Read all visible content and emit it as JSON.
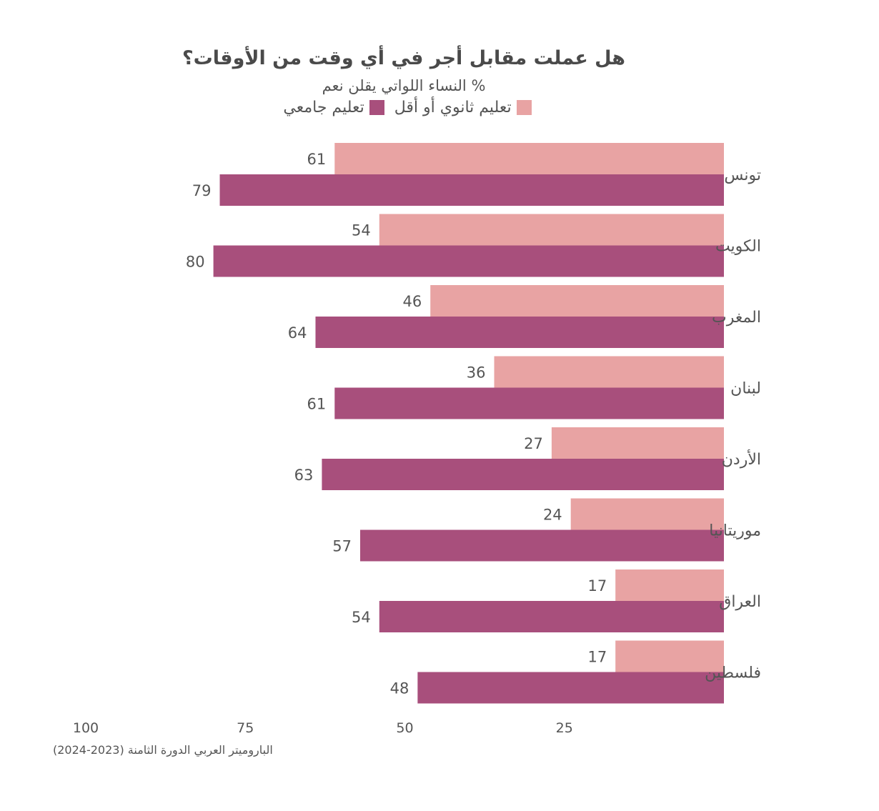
{
  "chart_data": {
    "type": "bar",
    "orientation": "horizontal",
    "title": "هل عملت مقابل أجر في أي وقت من الأوقات؟",
    "subtitle": "% النساء اللواتي يقلن نعم",
    "categories": [
      "تونس",
      "الكويت",
      "المغرب",
      "لبنان",
      "الأردن",
      "موريتانيا",
      "العراق",
      "فلسطين"
    ],
    "series": [
      {
        "name": "تعليم ثانوي أو أقل",
        "color": "#e8a3a3",
        "values": [
          61,
          54,
          46,
          36,
          27,
          24,
          17,
          17
        ]
      },
      {
        "name": "تعليم جامعي",
        "color": "#a84f7c",
        "values": [
          79,
          80,
          64,
          61,
          63,
          57,
          54,
          48
        ]
      }
    ],
    "xlim": [
      0,
      100
    ],
    "x_ticks": [
      100,
      75,
      50,
      25
    ],
    "axis_direction": "right-to-left",
    "grid": false,
    "legend_position": "top",
    "source": "الباروميتر العربي الدورة الثامنة (2023-2024)"
  }
}
